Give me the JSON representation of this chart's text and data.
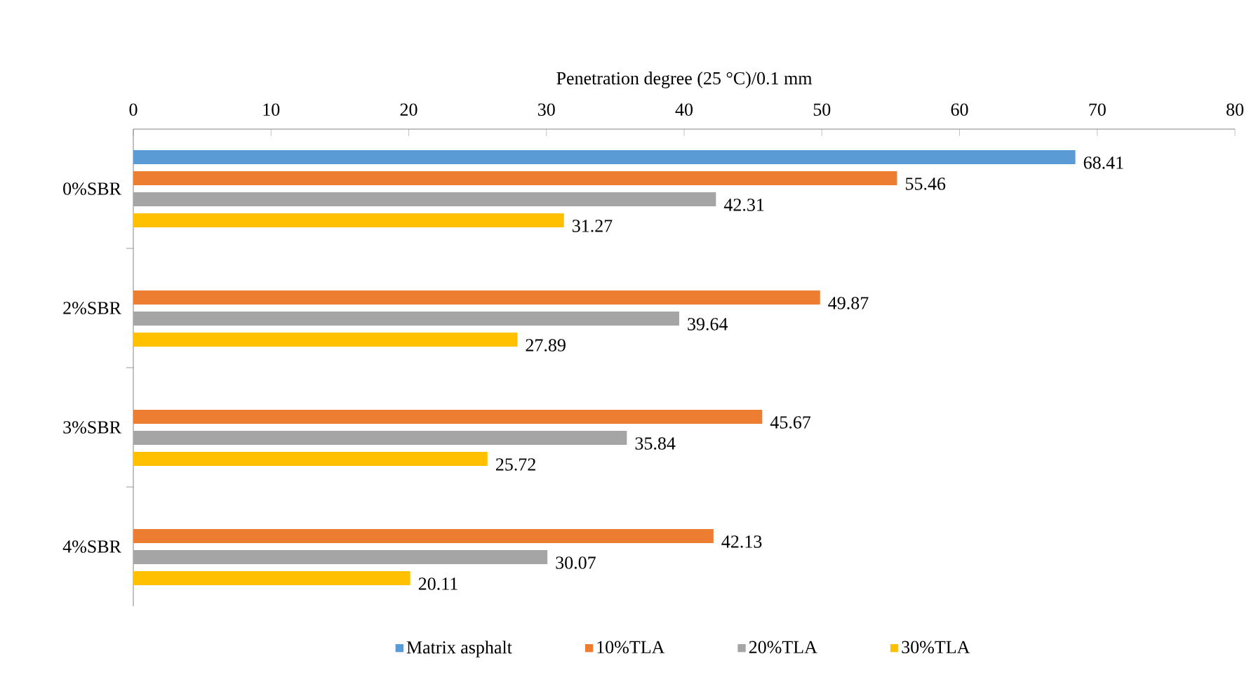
{
  "chart_data": {
    "type": "bar",
    "orientation": "horizontal",
    "xlabel": "Penetration degree (25 °C)/0.1 mm",
    "categories": [
      "0%SBR",
      "2%SBR",
      "3%SBR",
      "4%SBR"
    ],
    "series": [
      {
        "name": "Matrix asphalt",
        "color": "#5b9bd5",
        "values": [
          68.41,
          null,
          null,
          null
        ]
      },
      {
        "name": "10%TLA",
        "color": "#ed7d31",
        "values": [
          55.46,
          49.87,
          45.67,
          42.13
        ]
      },
      {
        "name": "20%TLA",
        "color": "#a5a5a5",
        "values": [
          42.31,
          39.64,
          35.84,
          30.07
        ]
      },
      {
        "name": "30%TLA",
        "color": "#ffc000",
        "values": [
          31.27,
          27.89,
          25.72,
          20.11
        ]
      }
    ],
    "xlim": [
      0,
      80
    ],
    "xticks": [
      0,
      10,
      20,
      30,
      40,
      50,
      60,
      70,
      80
    ],
    "data_labels": true,
    "legend": "bottom",
    "grid": false
  }
}
